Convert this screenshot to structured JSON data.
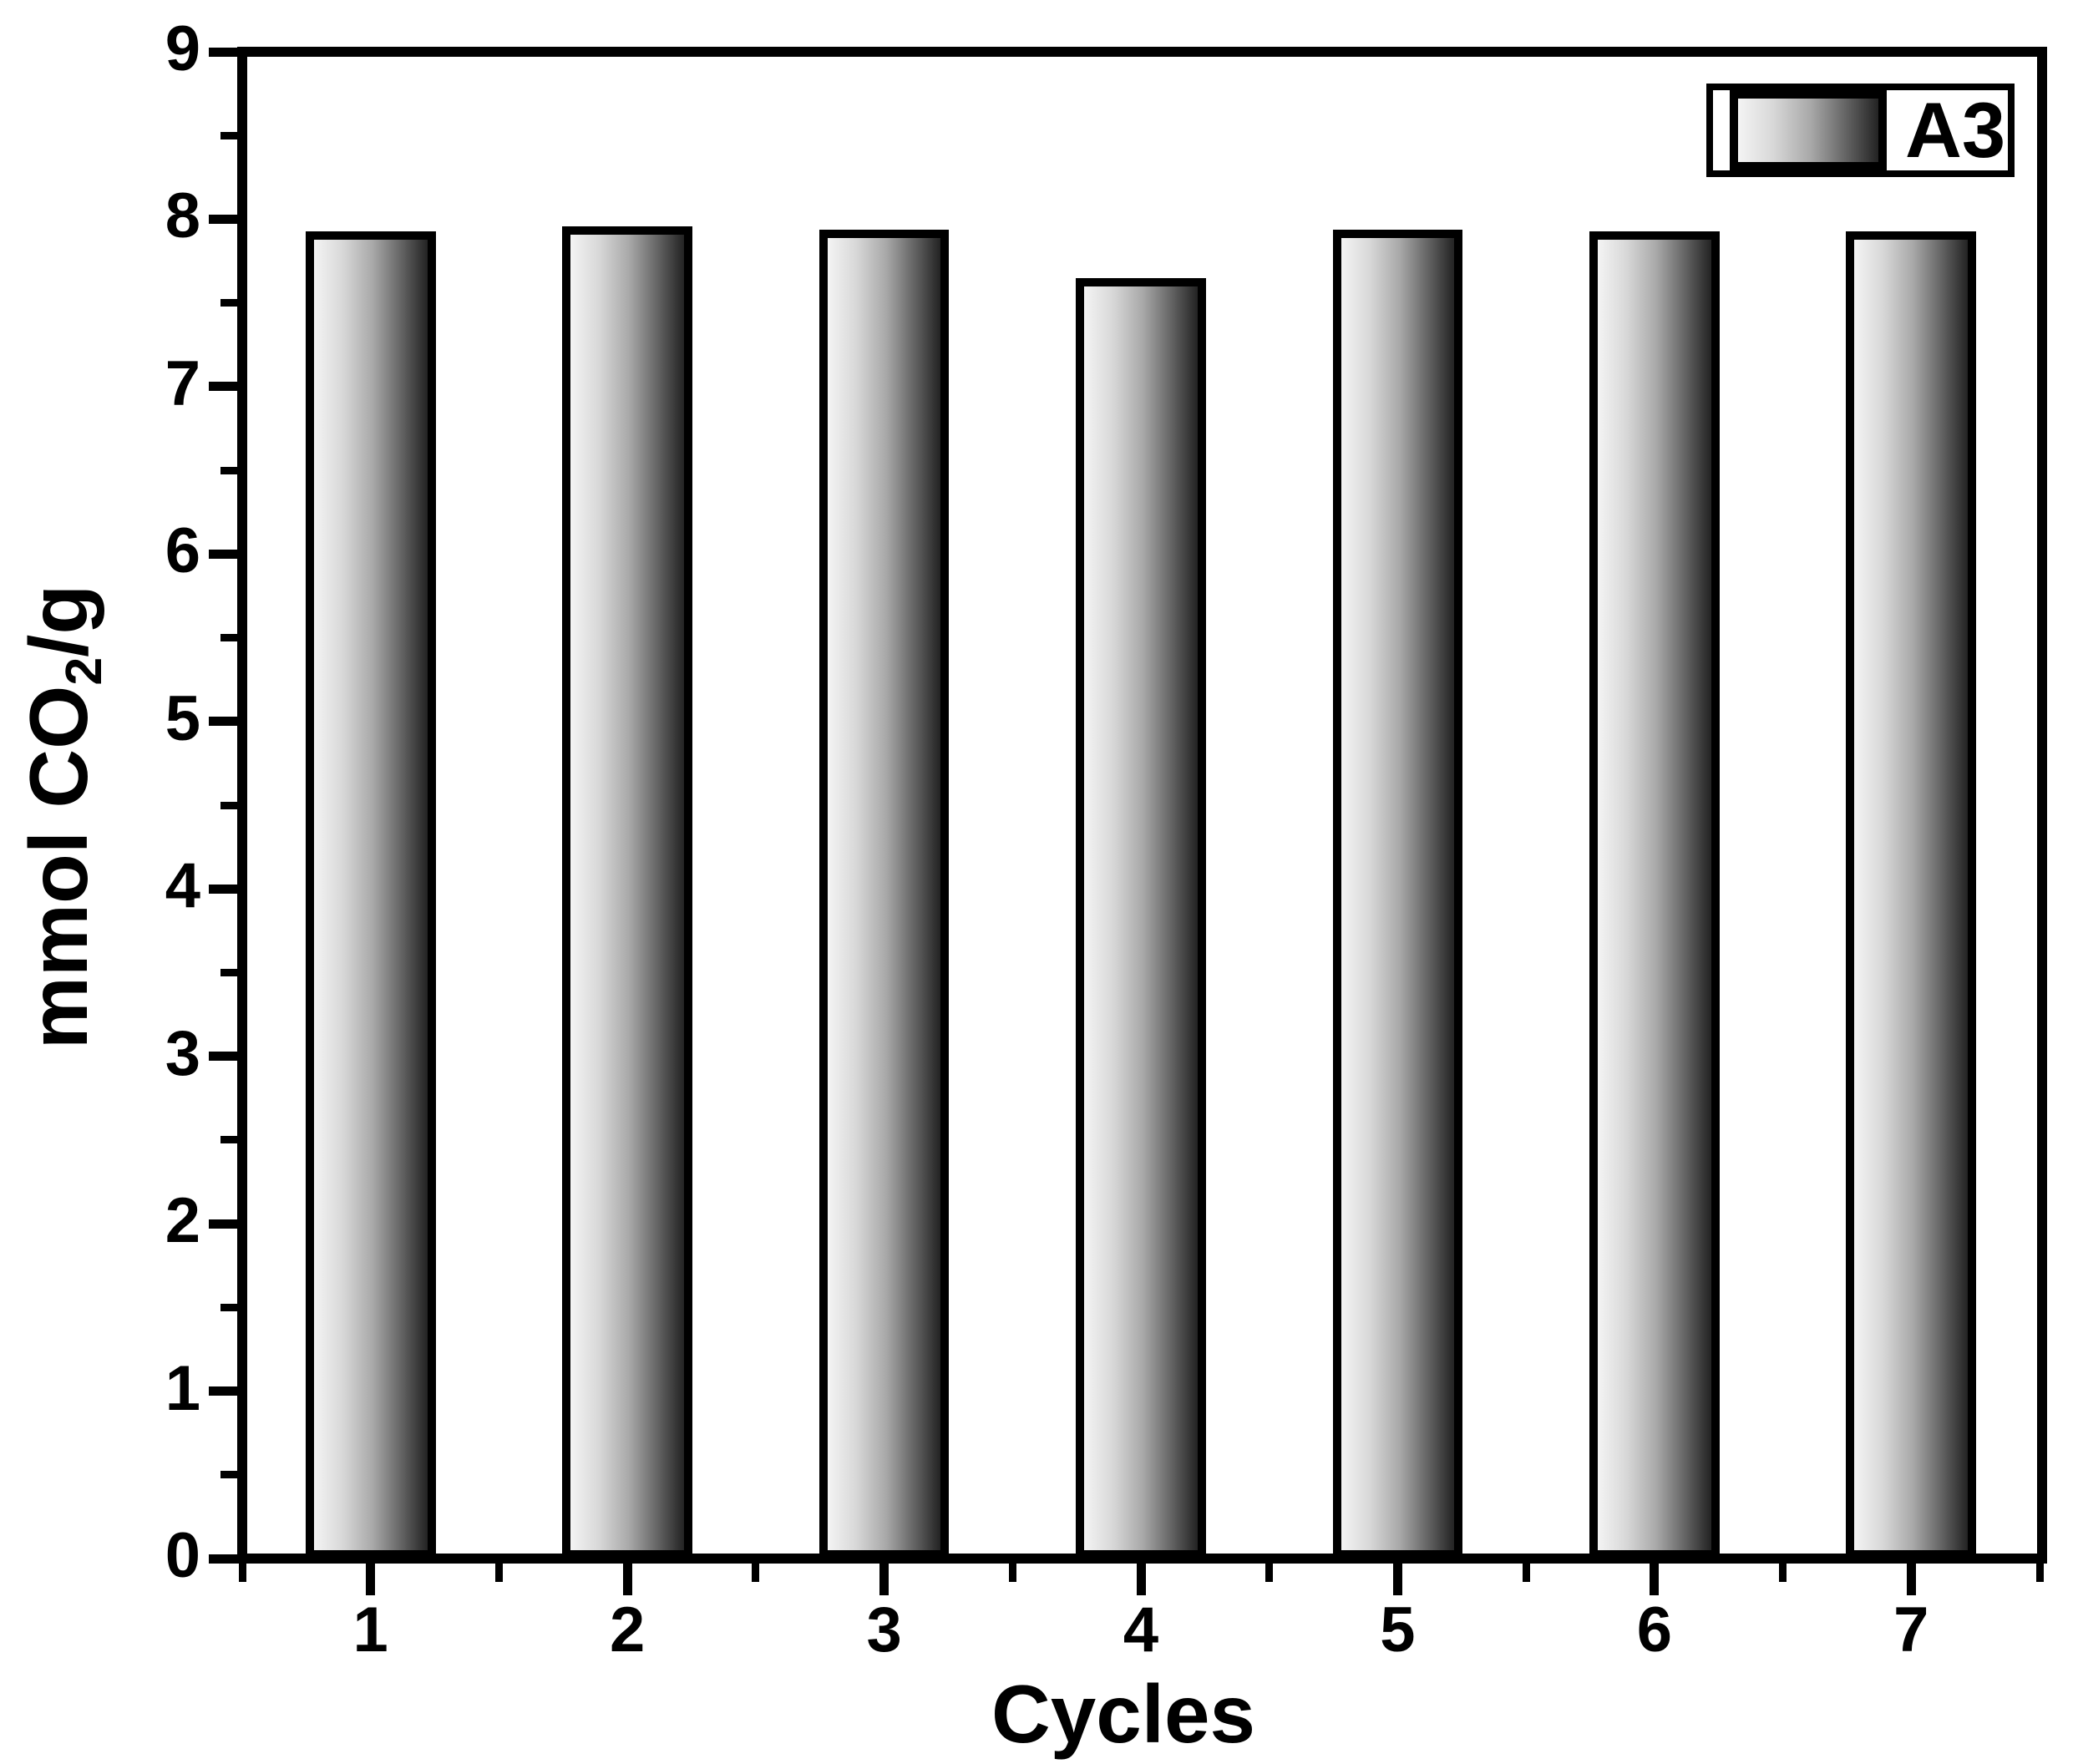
{
  "figure": {
    "background": "#ffffff"
  },
  "chart_data": {
    "type": "bar",
    "title": "",
    "xlabel": "Cycles",
    "ylabel": "mmol CO2/g",
    "ylabel_parts": {
      "prefix": "mmol CO",
      "subscript": "2",
      "suffix": "/g"
    },
    "categories": [
      "1",
      "2",
      "3",
      "4",
      "5",
      "6",
      "7"
    ],
    "series": [
      {
        "name": "A3",
        "values": [
          7.93,
          7.96,
          7.94,
          7.65,
          7.94,
          7.93,
          7.93
        ]
      }
    ],
    "xlim": [
      0.5,
      7.5
    ],
    "ylim": [
      0,
      9
    ],
    "yticks_major": [
      0,
      1,
      2,
      3,
      4,
      5,
      6,
      7,
      8,
      9
    ],
    "yticks_minor": [
      0.5,
      1.5,
      2.5,
      3.5,
      4.5,
      5.5,
      6.5,
      7.5,
      8.5
    ],
    "xticks_major": [
      1,
      2,
      3,
      4,
      5,
      6,
      7
    ],
    "xticks_minor": [
      0.5,
      1.5,
      2.5,
      3.5,
      4.5,
      5.5,
      6.5,
      7.5
    ],
    "bar_width_fraction": 0.507,
    "grid": false,
    "legend": {
      "position": "top-right",
      "entries": [
        {
          "label": "A3"
        }
      ]
    },
    "colors": {
      "bar_gradient_light": "#f4f4f4",
      "bar_gradient_dark": "#232323",
      "bar_outline": "#000000",
      "axis": "#000000",
      "text": "#000000",
      "background": "#ffffff"
    }
  }
}
